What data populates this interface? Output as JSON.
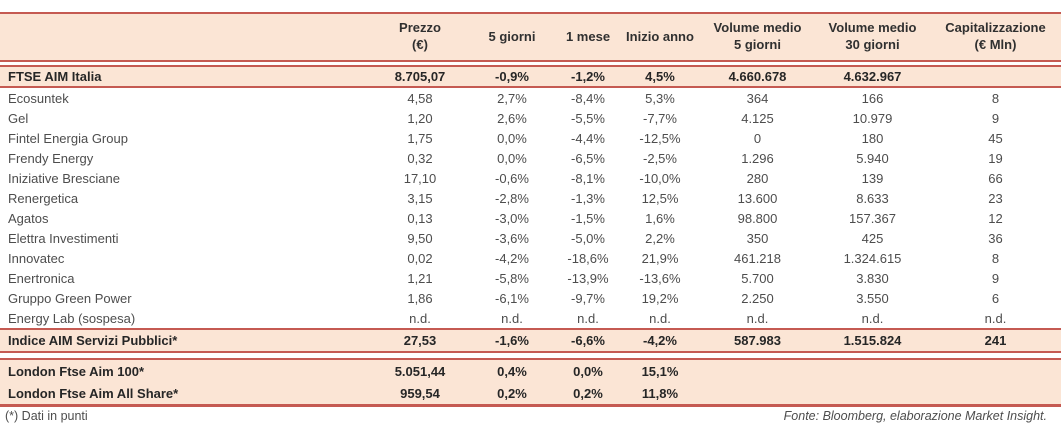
{
  "colors": {
    "accent_border": "#C55A52",
    "band_background": "#FBE5D5"
  },
  "header": {
    "columns": [
      {
        "line1": "",
        "line2": ""
      },
      {
        "line1": "Prezzo",
        "line2": "(€)"
      },
      {
        "line1": "5 giorni",
        "line2": ""
      },
      {
        "line1": "1 mese",
        "line2": ""
      },
      {
        "line1": "Inizio anno",
        "line2": ""
      },
      {
        "line1": "Volume medio",
        "line2": "5 giorni"
      },
      {
        "line1": "Volume medio",
        "line2": "30 giorni"
      },
      {
        "line1": "Capitalizzazione",
        "line2": "(€ Mln)"
      }
    ]
  },
  "rows": {
    "ftse": {
      "name": "FTSE AIM Italia",
      "prezzo": "8.705,07",
      "d5": "-0,9%",
      "m1": "-1,2%",
      "ytd": "4,5%",
      "vol5": "4.660.678",
      "vol30": "4.632.967",
      "cap": ""
    },
    "companies": [
      {
        "name": "Ecosuntek",
        "prezzo": "4,58",
        "d5": "2,7%",
        "m1": "-8,4%",
        "ytd": "5,3%",
        "vol5": "364",
        "vol30": "166",
        "cap": "8"
      },
      {
        "name": "Gel",
        "prezzo": "1,20",
        "d5": "2,6%",
        "m1": "-5,5%",
        "ytd": "-7,7%",
        "vol5": "4.125",
        "vol30": "10.979",
        "cap": "9"
      },
      {
        "name": "Fintel Energia Group",
        "prezzo": "1,75",
        "d5": "0,0%",
        "m1": "-4,4%",
        "ytd": "-12,5%",
        "vol5": "0",
        "vol30": "180",
        "cap": "45"
      },
      {
        "name": "Frendy Energy",
        "prezzo": "0,32",
        "d5": "0,0%",
        "m1": "-6,5%",
        "ytd": "-2,5%",
        "vol5": "1.296",
        "vol30": "5.940",
        "cap": "19"
      },
      {
        "name": "Iniziative Bresciane",
        "prezzo": "17,10",
        "d5": "-0,6%",
        "m1": "-8,1%",
        "ytd": "-10,0%",
        "vol5": "280",
        "vol30": "139",
        "cap": "66"
      },
      {
        "name": "Renergetica",
        "prezzo": "3,15",
        "d5": "-2,8%",
        "m1": "-1,3%",
        "ytd": "12,5%",
        "vol5": "13.600",
        "vol30": "8.633",
        "cap": "23"
      },
      {
        "name": "Agatos",
        "prezzo": "0,13",
        "d5": "-3,0%",
        "m1": "-1,5%",
        "ytd": "1,6%",
        "vol5": "98.800",
        "vol30": "157.367",
        "cap": "12"
      },
      {
        "name": "Elettra Investimenti",
        "prezzo": "9,50",
        "d5": "-3,6%",
        "m1": "-5,0%",
        "ytd": "2,2%",
        "vol5": "350",
        "vol30": "425",
        "cap": "36"
      },
      {
        "name": "Innovatec",
        "prezzo": "0,02",
        "d5": "-4,2%",
        "m1": "-18,6%",
        "ytd": "21,9%",
        "vol5": "461.218",
        "vol30": "1.324.615",
        "cap": "8"
      },
      {
        "name": "Enertronica",
        "prezzo": "1,21",
        "d5": "-5,8%",
        "m1": "-13,9%",
        "ytd": "-13,6%",
        "vol5": "5.700",
        "vol30": "3.830",
        "cap": "9"
      },
      {
        "name": "Gruppo Green Power",
        "prezzo": "1,86",
        "d5": "-6,1%",
        "m1": "-9,7%",
        "ytd": "19,2%",
        "vol5": "2.250",
        "vol30": "3.550",
        "cap": "6"
      },
      {
        "name": "Energy Lab (sospesa)",
        "prezzo": "n.d.",
        "d5": "n.d.",
        "m1": "n.d.",
        "ytd": "n.d.",
        "vol5": "n.d.",
        "vol30": "n.d.",
        "cap": "n.d."
      }
    ],
    "indice": {
      "name": "Indice AIM Servizi Pubblici*",
      "prezzo": "27,53",
      "d5": "-1,6%",
      "m1": "-6,6%",
      "ytd": "-4,2%",
      "vol5": "587.983",
      "vol30": "1.515.824",
      "cap": "241"
    },
    "london": [
      {
        "name": "London Ftse Aim 100*",
        "prezzo": "5.051,44",
        "d5": "0,4%",
        "m1": "0,0%",
        "ytd": "15,1%",
        "vol5": "",
        "vol30": "",
        "cap": ""
      },
      {
        "name": "London Ftse Aim All Share*",
        "prezzo": "959,54",
        "d5": "0,2%",
        "m1": "0,2%",
        "ytd": "11,8%",
        "vol5": "",
        "vol30": "",
        "cap": ""
      }
    ]
  },
  "footer": {
    "note": "(*) Dati in punti",
    "source": "Fonte: Bloomberg, elaborazione Market Insight."
  }
}
